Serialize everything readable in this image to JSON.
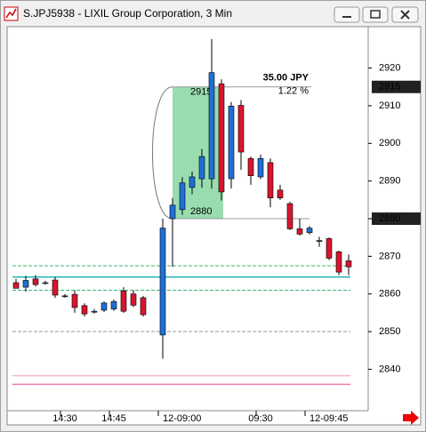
{
  "chart_data": {
    "type": "candlestick",
    "title": "S.JPJ5938 - LIXIL Group Corporation, 3 Min",
    "categories": [
      null,
      null,
      null,
      null,
      null,
      "14:30",
      null,
      null,
      null,
      null,
      "14:45",
      null,
      null,
      null,
      null,
      "12-09:00",
      null,
      null,
      null,
      null,
      null,
      null,
      null,
      null,
      null,
      "09:30",
      null,
      null,
      null,
      null,
      "12-09:45",
      null,
      null,
      null,
      null
    ],
    "open": [
      2863,
      2861.8,
      2864,
      2863,
      2863.7,
      2859.5,
      2859.9,
      2856.9,
      2855.4,
      2855.7,
      2856,
      2860.8,
      2860,
      2859,
      null,
      2849.1,
      2880,
      2882.4,
      2888.3,
      2890.6,
      2890.6,
      2915.8,
      2890.6,
      2910.1,
      2896,
      2891.1,
      2894.9,
      2887.6,
      2884,
      2877.3,
      2876.3,
      2874.2,
      2874.7,
      2871.2,
      2868.8
    ],
    "high": [
      2864,
      2864.8,
      2865,
      2863.5,
      2864.5,
      2860,
      2861,
      2857.5,
      2856,
      2858,
      2858.5,
      2861.8,
      2861,
      2859.5,
      null,
      2880,
      2885.5,
      2891,
      2892.5,
      2898.5,
      2927.7,
      2917,
      2911,
      2911.5,
      2896.5,
      2897,
      2896,
      2889,
      2884.5,
      2880,
      2878,
      2875.2,
      2875,
      2871.5,
      2870.5
    ],
    "low": [
      2861.5,
      2860.6,
      2862,
      2862.5,
      2859,
      2859,
      2855,
      2854,
      2854.8,
      2855.2,
      2855.5,
      2855,
      2856.5,
      2854,
      null,
      2842.8,
      2867.2,
      2881,
      2886.5,
      2888.2,
      2888,
      2884.8,
      2888,
      2893,
      2889,
      2890.5,
      2883,
      2885,
      2877,
      2875.5,
      2875.8,
      2872.5,
      2869,
      2865,
      2865
    ],
    "close": [
      2861.5,
      2863.6,
      2862.5,
      2863,
      2859.7,
      2859.5,
      2856.4,
      2854.7,
      2855.4,
      2857.6,
      2858,
      2855.4,
      2857,
      2854.5,
      null,
      2877.5,
      2883.6,
      2889.5,
      2891.1,
      2896.5,
      2918.8,
      2887.1,
      2909.9,
      2897.7,
      2891.4,
      2896,
      2885.5,
      2885.5,
      2877.3,
      2875.9,
      2877.5,
      2874.2,
      2869.5,
      2865.8,
      2867.2
    ],
    "up_color": "#1f6fd6",
    "down_color": "#d8162e",
    "ylim": [
      2829,
      2931
    ],
    "yticks": [
      2840,
      2850,
      2860,
      2870,
      2880,
      2890,
      2900,
      2910,
      2920
    ],
    "price_markers": [
      2915,
      2880
    ],
    "measurement": {
      "from": 2880,
      "to": 2915,
      "change_label": "35.00 JPY",
      "percent_label": "1.22 %",
      "color": "#7fd39c"
    },
    "levels": [
      {
        "value": 2864.5,
        "color": "#20b4b4",
        "style": "solid"
      },
      {
        "value": 2867.5,
        "color": "#3cb371",
        "style": "dashed"
      },
      {
        "value": 2861,
        "color": "#3cb371",
        "style": "dashed"
      },
      {
        "value": 2850,
        "color": "#999999",
        "style": "dashed"
      },
      {
        "value": 2838.3,
        "color": "#f4b8d0",
        "style": "solid"
      },
      {
        "value": 2836,
        "color": "#f07ab0",
        "style": "solid"
      }
    ]
  }
}
